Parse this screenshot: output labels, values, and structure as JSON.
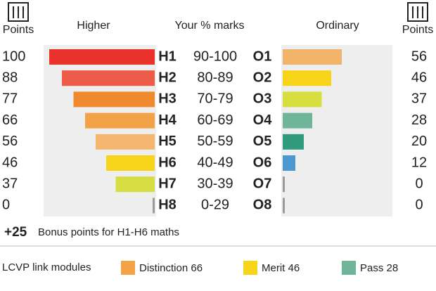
{
  "chart_data": {
    "type": "diverging-bar",
    "headers": {
      "left_points": "Points",
      "left": "Higher",
      "middle": "Your % marks",
      "right": "Ordinary",
      "right_points": "Points"
    },
    "categories": [
      "90-100",
      "80-89",
      "70-79",
      "60-69",
      "50-59",
      "40-49",
      "30-39",
      "0-29"
    ],
    "xlim": [
      0,
      100
    ],
    "series": [
      {
        "name": "Higher",
        "grades": [
          "H1",
          "H2",
          "H3",
          "H4",
          "H5",
          "H6",
          "H7",
          "H8"
        ],
        "values": [
          100,
          88,
          77,
          66,
          56,
          46,
          37,
          0
        ],
        "colors": [
          "#e8322b",
          "#ec5b48",
          "#ef8a2e",
          "#f3a247",
          "#f4b66e",
          "#f7d419",
          "#d5dd42",
          "#9a9a9a"
        ]
      },
      {
        "name": "Ordinary",
        "grades": [
          "O1",
          "O2",
          "O3",
          "O4",
          "O5",
          "O6",
          "O7",
          "O8"
        ],
        "values": [
          56,
          46,
          37,
          28,
          20,
          12,
          0,
          0
        ],
        "colors": [
          "#f2b36a",
          "#f7d418",
          "#d7df3f",
          "#6fb59a",
          "#2f9a7d",
          "#4b97cf",
          "#9a9a9a",
          "#9a9a9a"
        ]
      }
    ]
  },
  "bonus": {
    "amount": "+25",
    "text": "Bonus points for H1-H6 maths"
  },
  "legend": {
    "title": "LCVP link modules",
    "items": [
      {
        "label": "Distinction 66",
        "color": "#f3a247"
      },
      {
        "label": "Merit 46",
        "color": "#f7d418"
      },
      {
        "label": "Pass 28",
        "color": "#6fb59a"
      }
    ]
  }
}
